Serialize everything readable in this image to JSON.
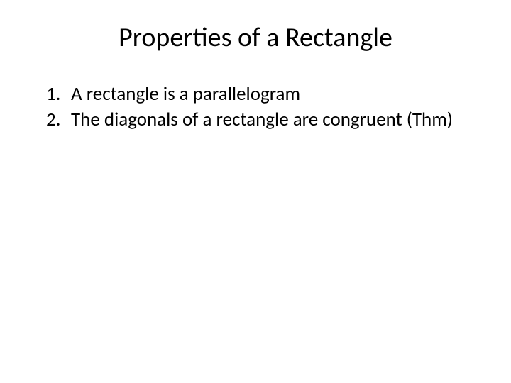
{
  "slide": {
    "title": "Properties of a Rectangle",
    "items": [
      {
        "number": "1.",
        "text": "A rectangle is a parallelogram"
      },
      {
        "number": "2.",
        "text": "The diagonals of a rectangle are congruent (Thm)"
      }
    ]
  },
  "style": {
    "background_color": "#ffffff",
    "text_color": "#000000",
    "title_fontsize": 38,
    "body_fontsize": 27,
    "font_family": "Calibri"
  }
}
